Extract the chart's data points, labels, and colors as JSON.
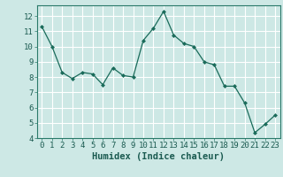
{
  "x": [
    0,
    1,
    2,
    3,
    4,
    5,
    6,
    7,
    8,
    9,
    10,
    11,
    12,
    13,
    14,
    15,
    16,
    17,
    18,
    19,
    20,
    21,
    22,
    23
  ],
  "y": [
    11.3,
    10.0,
    8.3,
    7.9,
    8.3,
    8.2,
    7.5,
    8.6,
    8.1,
    8.0,
    10.4,
    11.2,
    12.3,
    10.75,
    10.2,
    10.0,
    9.0,
    8.8,
    7.4,
    7.4,
    6.3,
    4.35,
    4.9,
    5.5
  ],
  "xlabel": "Humidex (Indice chaleur)",
  "ylim": [
    4,
    12.7
  ],
  "xlim": [
    -0.5,
    23.5
  ],
  "yticks": [
    4,
    5,
    6,
    7,
    8,
    9,
    10,
    11,
    12
  ],
  "xticks": [
    0,
    1,
    2,
    3,
    4,
    5,
    6,
    7,
    8,
    9,
    10,
    11,
    12,
    13,
    14,
    15,
    16,
    17,
    18,
    19,
    20,
    21,
    22,
    23
  ],
  "line_color": "#1a6b5a",
  "marker": "D",
  "marker_size": 2.0,
  "bg_color": "#cde8e5",
  "grid_color": "#ffffff",
  "tick_label_size": 6.5,
  "xlabel_size": 7.5,
  "spine_color": "#2a7a6a"
}
